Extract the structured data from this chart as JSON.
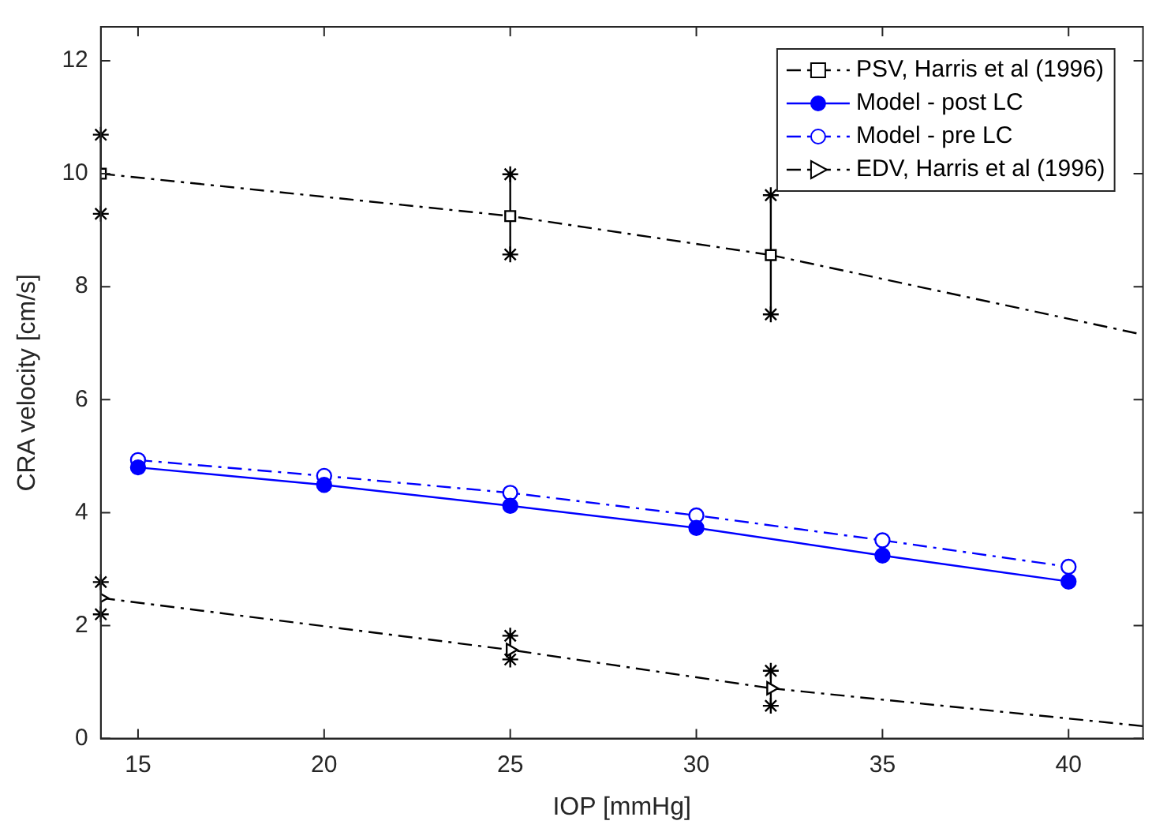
{
  "chart_data": {
    "type": "line",
    "xlabel": "IOP [mmHg]",
    "ylabel": "CRA velocity [cm/s]",
    "xlim": [
      14,
      42
    ],
    "ylim": [
      0,
      12.6
    ],
    "xticks": [
      15,
      20,
      25,
      30,
      35,
      40
    ],
    "yticks": [
      0,
      2,
      4,
      6,
      8,
      10,
      12
    ],
    "grid": false,
    "legend": "top right",
    "series": [
      {
        "name": "PSV, Harris et al (1996)",
        "color": "#000000",
        "x": [
          14,
          25,
          32
        ],
        "values": [
          10,
          9.25,
          8.56
        ],
        "errors": [
          [
            9.29,
            10.69
          ],
          [
            8.57,
            9.99
          ],
          [
            7.51,
            9.62
          ]
        ],
        "marker": "square",
        "line_style": "dashed"
      },
      {
        "name": "Model - post LC",
        "color": "#0000ff",
        "x": [
          15,
          20,
          25,
          30,
          35,
          40
        ],
        "values": [
          4.8,
          4.49,
          4.12,
          3.73,
          3.24,
          2.78
        ],
        "marker": "circle",
        "line_style": "solid"
      },
      {
        "name": "Model - pre LC",
        "color": "#0000ff",
        "x": [
          15,
          20,
          25,
          30,
          35,
          40
        ],
        "values": [
          4.93,
          4.65,
          4.35,
          3.95,
          3.51,
          3.04
        ],
        "marker": "circle",
        "line_style": "dashed"
      },
      {
        "name": "EDV, Harris et al (1996)",
        "color": "#000000",
        "x": [
          14,
          25,
          32
        ],
        "values": [
          2.49,
          1.57,
          0.89
        ],
        "errors": [
          [
            2.2,
            2.77
          ],
          [
            1.4,
            1.82
          ],
          [
            0.58,
            1.2
          ]
        ],
        "marker": "triangle",
        "line_style": "dashed"
      },
      {
        "color": "#000000",
        "x": [
          32,
          42
        ],
        "values": [
          8.56,
          7.15
        ],
        "line_style": "dashed"
      },
      {
        "color": "#000000",
        "x": [
          32,
          42
        ],
        "values": [
          0.89,
          0.22
        ],
        "line_style": "dashed"
      }
    ]
  }
}
